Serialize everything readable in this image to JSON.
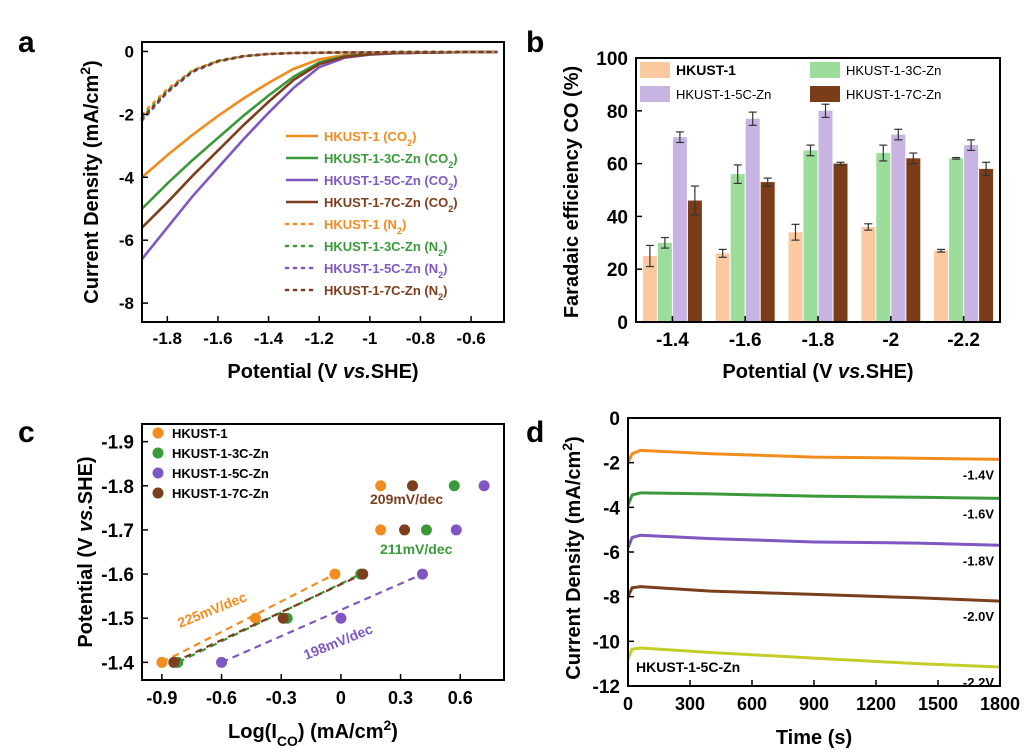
{
  "chart_data": [
    {
      "panel": "a",
      "type": "line",
      "xlabel": "Potential (V vs.SHE)",
      "ylabel": "Current Density (mA/cm2)",
      "xlim": [
        -1.9,
        -0.47
      ],
      "ylim": [
        -8.6,
        0.3
      ],
      "x_ticks": [
        "-1.8",
        "-1.6",
        "-1.4",
        "-1.2",
        "-1",
        "-0.8",
        "-0.6"
      ],
      "y_ticks": [
        "0",
        "-2",
        "-4",
        "-6",
        "-8"
      ],
      "series": [
        {
          "name": "HKUST-1 (CO2)",
          "color": "#f28c1e",
          "dash": "solid",
          "x": [
            -1.9,
            -1.8,
            -1.7,
            -1.6,
            -1.5,
            -1.4,
            -1.3,
            -1.2,
            -1.1,
            -1.0,
            -0.9,
            -0.8,
            -0.7,
            -0.6,
            -0.5
          ],
          "y": [
            -4.0,
            -3.3,
            -2.65,
            -2.05,
            -1.5,
            -1.0,
            -0.55,
            -0.25,
            -0.12,
            -0.07,
            -0.05,
            -0.04,
            -0.03,
            -0.02,
            -0.02
          ]
        },
        {
          "name": "HKUST-1-3C-Zn (CO2)",
          "color": "#3a9a3a",
          "dash": "solid",
          "x": [
            -1.9,
            -1.8,
            -1.7,
            -1.6,
            -1.5,
            -1.4,
            -1.3,
            -1.2,
            -1.1,
            -1.0,
            -0.9,
            -0.8,
            -0.7,
            -0.6,
            -0.5
          ],
          "y": [
            -5.0,
            -4.2,
            -3.45,
            -2.75,
            -2.05,
            -1.4,
            -0.8,
            -0.35,
            -0.15,
            -0.08,
            -0.05,
            -0.04,
            -0.03,
            -0.02,
            -0.02
          ]
        },
        {
          "name": "HKUST-1-5C-Zn (CO2)",
          "color": "#7e57c2",
          "dash": "solid",
          "x": [
            -1.9,
            -1.8,
            -1.7,
            -1.6,
            -1.5,
            -1.4,
            -1.3,
            -1.2,
            -1.1,
            -1.0,
            -0.9,
            -0.8,
            -0.7,
            -0.6,
            -0.5
          ],
          "y": [
            -6.6,
            -5.6,
            -4.6,
            -3.7,
            -2.8,
            -1.95,
            -1.15,
            -0.5,
            -0.2,
            -0.1,
            -0.06,
            -0.04,
            -0.03,
            -0.02,
            -0.02
          ]
        },
        {
          "name": "HKUST-1-7C-Zn (CO2)",
          "color": "#7b3f1d",
          "dash": "solid",
          "x": [
            -1.9,
            -1.8,
            -1.7,
            -1.6,
            -1.5,
            -1.4,
            -1.3,
            -1.2,
            -1.1,
            -1.0,
            -0.9,
            -0.8,
            -0.7,
            -0.6,
            -0.5
          ],
          "y": [
            -5.6,
            -4.8,
            -3.95,
            -3.15,
            -2.35,
            -1.6,
            -0.9,
            -0.4,
            -0.17,
            -0.09,
            -0.05,
            -0.04,
            -0.03,
            -0.02,
            -0.02
          ]
        },
        {
          "name": "HKUST-1 (N2)",
          "color": "#f28c1e",
          "dash": "dot",
          "x": [
            -1.9,
            -1.8,
            -1.7,
            -1.6,
            -1.5,
            -1.4,
            -1.3,
            -1.2,
            -1.1,
            -1.0,
            -0.9,
            -0.8,
            -0.7,
            -0.6,
            -0.5
          ],
          "y": [
            -2.0,
            -1.2,
            -0.6,
            -0.3,
            -0.15,
            -0.08,
            -0.05,
            -0.04,
            -0.03,
            -0.03,
            -0.02,
            -0.02,
            -0.02,
            -0.02,
            -0.02
          ]
        },
        {
          "name": "HKUST-1-3C-Zn (N2)",
          "color": "#3a9a3a",
          "dash": "dot",
          "x": [
            -1.9,
            -1.8,
            -1.7,
            -1.6,
            -1.5,
            -1.4,
            -1.3,
            -1.2,
            -1.1,
            -1.0,
            -0.9,
            -0.8,
            -0.7,
            -0.6,
            -0.5
          ],
          "y": [
            -2.1,
            -1.25,
            -0.62,
            -0.3,
            -0.15,
            -0.08,
            -0.05,
            -0.04,
            -0.03,
            -0.03,
            -0.02,
            -0.02,
            -0.02,
            -0.02,
            -0.02
          ]
        },
        {
          "name": "HKUST-1-5C-Zn (N2)",
          "color": "#7e57c2",
          "dash": "dot",
          "x": [
            -1.9,
            -1.8,
            -1.7,
            -1.6,
            -1.5,
            -1.4,
            -1.3,
            -1.2,
            -1.1,
            -1.0,
            -0.9,
            -0.8,
            -0.7,
            -0.6,
            -0.5
          ],
          "y": [
            -2.2,
            -1.3,
            -0.65,
            -0.32,
            -0.16,
            -0.08,
            -0.05,
            -0.04,
            -0.03,
            -0.03,
            -0.02,
            -0.02,
            -0.02,
            -0.02,
            -0.02
          ]
        },
        {
          "name": "HKUST-1-7C-Zn (N2)",
          "color": "#7b3f1d",
          "dash": "dot",
          "x": [
            -1.9,
            -1.8,
            -1.7,
            -1.6,
            -1.5,
            -1.4,
            -1.3,
            -1.2,
            -1.1,
            -1.0,
            -0.9,
            -0.8,
            -0.7,
            -0.6,
            -0.5
          ],
          "y": [
            -2.15,
            -1.28,
            -0.63,
            -0.31,
            -0.15,
            -0.08,
            -0.05,
            -0.04,
            -0.03,
            -0.03,
            -0.02,
            -0.02,
            -0.02,
            -0.02,
            -0.02
          ]
        }
      ]
    },
    {
      "panel": "b",
      "type": "bar",
      "xlabel": "Potential (V vs.SHE)",
      "ylabel": "Faradaic efficiency CO (%)",
      "ylim": [
        0,
        100
      ],
      "categories": [
        "-1.4",
        "-1.6",
        "-1.8",
        "-2",
        "-2.2"
      ],
      "y_ticks": [
        "0",
        "20",
        "40",
        "60",
        "80",
        "100"
      ],
      "series": [
        {
          "name": "HKUST-1",
          "color": "#fbc9a0",
          "values": [
            25,
            26,
            34,
            36,
            27
          ],
          "errors": [
            4,
            1.5,
            3,
            1.2,
            0.5
          ]
        },
        {
          "name": "HKUST-1-3C-Zn",
          "color": "#9ddd9c",
          "values": [
            30,
            56,
            65,
            64,
            62
          ],
          "errors": [
            2,
            3.5,
            2,
            3,
            0.3
          ]
        },
        {
          "name": "HKUST-1-5C-Zn",
          "color": "#c8b4e2",
          "values": [
            70,
            77,
            80,
            71,
            67
          ],
          "errors": [
            2,
            2.5,
            2.5,
            2,
            2
          ]
        },
        {
          "name": "HKUST-1-7C-Zn",
          "color": "#7a3d18",
          "values": [
            46,
            53,
            60,
            62,
            58
          ],
          "errors": [
            5.5,
            1.5,
            0.5,
            2,
            2.5
          ]
        }
      ]
    },
    {
      "panel": "c",
      "type": "scatter",
      "xlabel": "Log(I_CO) (mA/cm2)",
      "ylabel": "Potential (V vs.SHE)",
      "xlim": [
        -1.0,
        0.82
      ],
      "ylim": [
        -1.36,
        -1.94
      ],
      "x_ticks": [
        "-0.9",
        "-0.6",
        "-0.3",
        "0",
        "0.3",
        "0.6"
      ],
      "y_ticks": [
        "-1.4",
        "-1.5",
        "-1.6",
        "-1.7",
        "-1.8",
        "-1.9"
      ],
      "series": [
        {
          "name": "HKUST-1",
          "color": "#f28c1e",
          "x": [
            -0.9,
            -0.43,
            -0.03,
            0.2,
            0.2
          ],
          "y": [
            -1.4,
            -1.5,
            -1.6,
            -1.7,
            -1.8
          ],
          "slope": "225mV/dec"
        },
        {
          "name": "HKUST-1-3C-Zn",
          "color": "#3a9a3a",
          "x": [
            -0.82,
            -0.27,
            0.1,
            0.43,
            0.57
          ],
          "y": [
            -1.4,
            -1.5,
            -1.6,
            -1.7,
            -1.8
          ],
          "slope": "211mV/dec"
        },
        {
          "name": "HKUST-1-5C-Zn",
          "color": "#7e57c2",
          "x": [
            -0.6,
            0.0,
            0.41,
            0.58,
            0.72
          ],
          "y": [
            -1.4,
            -1.5,
            -1.6,
            -1.7,
            -1.8
          ],
          "slope": "198mV/dec"
        },
        {
          "name": "HKUST-1-7C-Zn",
          "color": "#7b3f1d",
          "x": [
            -0.84,
            -0.29,
            0.11,
            0.32,
            0.36
          ],
          "y": [
            -1.4,
            -1.5,
            -1.6,
            -1.7,
            -1.8
          ],
          "slope": "209mV/dec"
        }
      ]
    },
    {
      "panel": "d",
      "type": "line",
      "xlabel": "Time (s)",
      "ylabel": "Current Density (mA/cm2)",
      "xlim": [
        0,
        1800
      ],
      "ylim": [
        -12,
        0
      ],
      "x_ticks": [
        "0",
        "300",
        "600",
        "900",
        "1200",
        "1500",
        "1800"
      ],
      "y_ticks": [
        "0",
        "-2",
        "-4",
        "-6",
        "-8",
        "-10",
        "-12"
      ],
      "annotation": "HKUST-1-5C-Zn",
      "series": [
        {
          "name": "-1.4V",
          "color": "#f28c1e",
          "x": [
            0,
            20,
            60,
            400,
            900,
            1400,
            1800
          ],
          "y": [
            -2.0,
            -1.6,
            -1.45,
            -1.6,
            -1.75,
            -1.8,
            -1.85
          ]
        },
        {
          "name": "-1.6V",
          "color": "#3a9a3a",
          "x": [
            0,
            20,
            60,
            400,
            900,
            1400,
            1800
          ],
          "y": [
            -3.9,
            -3.45,
            -3.35,
            -3.4,
            -3.5,
            -3.55,
            -3.6
          ]
        },
        {
          "name": "-1.8V",
          "color": "#7e57c2",
          "x": [
            0,
            20,
            60,
            400,
            900,
            1400,
            1800
          ],
          "y": [
            -5.8,
            -5.35,
            -5.25,
            -5.4,
            -5.55,
            -5.6,
            -5.7
          ]
        },
        {
          "name": "-2.0V",
          "color": "#7b3f1d",
          "x": [
            0,
            20,
            60,
            400,
            900,
            1400,
            1800
          ],
          "y": [
            -8.0,
            -7.6,
            -7.55,
            -7.75,
            -7.9,
            -8.05,
            -8.2
          ]
        },
        {
          "name": "-2.2V",
          "color": "#c5cd2a",
          "x": [
            0,
            20,
            60,
            400,
            900,
            1400,
            1800
          ],
          "y": [
            -10.8,
            -10.35,
            -10.3,
            -10.5,
            -10.75,
            -11.0,
            -11.15
          ]
        }
      ]
    }
  ]
}
